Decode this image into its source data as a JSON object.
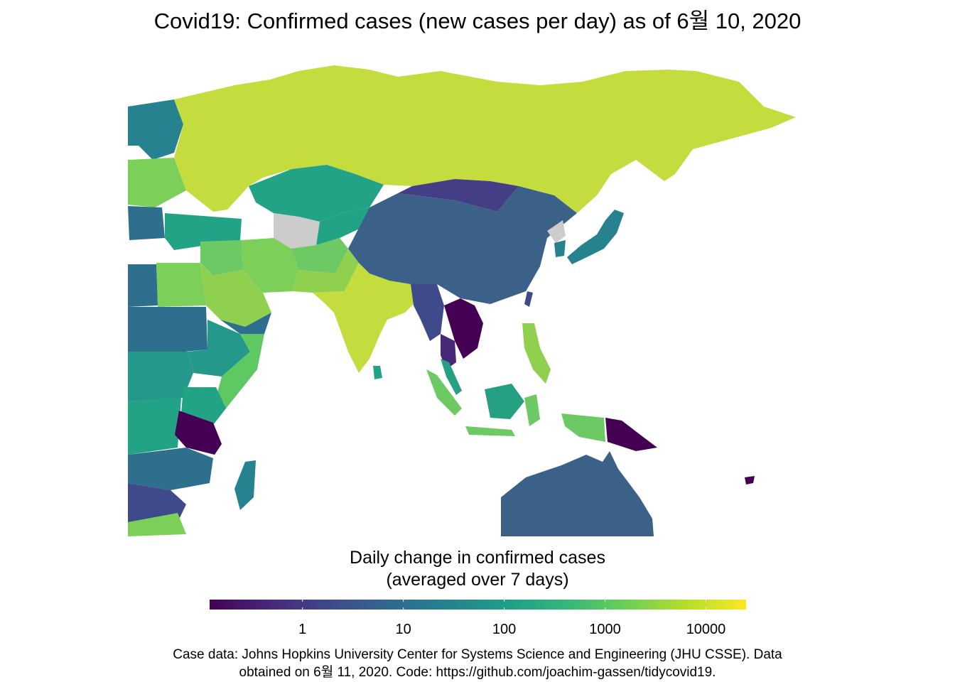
{
  "title": "Covid19: Confirmed cases (new cases per day) as of 6월 10, 2020",
  "legend": {
    "title_line1": "Daily change in confirmed cases",
    "title_line2": "(averaged over 7 days)",
    "scale": "log10",
    "domain": [
      0.12,
      25000
    ],
    "palette": [
      "#440154",
      "#482878",
      "#3e4a89",
      "#31688e",
      "#26828e",
      "#1f9e89",
      "#35b779",
      "#6ece58",
      "#b5de2b",
      "#fde725"
    ],
    "ticks": [
      {
        "value": 1,
        "label": "1"
      },
      {
        "value": 10,
        "label": "10"
      },
      {
        "value": 100,
        "label": "100"
      },
      {
        "value": 1000,
        "label": "1000"
      },
      {
        "value": 10000,
        "label": "10000"
      }
    ]
  },
  "caption": {
    "line1": "Case data: Johns Hopkins University Center for Systems Science and Engineering (JHU CSSE). Data",
    "line2": "obtained on 6월 11, 2020. Code: https://github.com/joachim-gassen/tidycovid19."
  },
  "colors": {
    "no_data": "#cccccc",
    "background": "#ffffff"
  },
  "regions": [
    {
      "name": "russia",
      "color": "#c4dc3d"
    },
    {
      "name": "china",
      "color": "#3b6189"
    },
    {
      "name": "mongolia",
      "color": "#433e85"
    },
    {
      "name": "kazakhstan",
      "color": "#22a386"
    },
    {
      "name": "india",
      "color": "#c4dc3d"
    },
    {
      "name": "saudi-arabia",
      "color": "#8fd14f"
    },
    {
      "name": "iran",
      "color": "#7ccf58"
    },
    {
      "name": "afghanistan",
      "color": "#6dc964"
    },
    {
      "name": "pakistan",
      "color": "#8fd14f"
    },
    {
      "name": "turkmenistan",
      "color": "#cccccc"
    },
    {
      "name": "north-korea",
      "color": "#cccccc"
    },
    {
      "name": "south-korea",
      "color": "#26828e"
    },
    {
      "name": "japan",
      "color": "#26828e"
    },
    {
      "name": "taiwan",
      "color": "#3e4a89"
    },
    {
      "name": "myanmar",
      "color": "#3e4a89"
    },
    {
      "name": "thailand",
      "color": "#482878"
    },
    {
      "name": "laos",
      "color": "#440154"
    },
    {
      "name": "vietnam",
      "color": "#440154"
    },
    {
      "name": "cambodia",
      "color": "#440154"
    },
    {
      "name": "malaysia",
      "color": "#26a083"
    },
    {
      "name": "indonesia",
      "color": "#6dc964"
    },
    {
      "name": "philippines",
      "color": "#8fd14f"
    },
    {
      "name": "papua-new-guinea",
      "color": "#440154"
    },
    {
      "name": "australia",
      "color": "#3b6189"
    },
    {
      "name": "egypt",
      "color": "#7ccf58"
    },
    {
      "name": "sudan",
      "color": "#2e6f8e"
    },
    {
      "name": "ethiopia",
      "color": "#24988b"
    },
    {
      "name": "somalia",
      "color": "#5ec962"
    },
    {
      "name": "kenya",
      "color": "#22a386"
    },
    {
      "name": "tanzania",
      "color": "#440154"
    },
    {
      "name": "madagascar",
      "color": "#26828e"
    },
    {
      "name": "mozambique",
      "color": "#3e4a89"
    },
    {
      "name": "scandinavia",
      "color": "#26828e"
    },
    {
      "name": "ukraine",
      "color": "#7ccf58"
    }
  ]
}
